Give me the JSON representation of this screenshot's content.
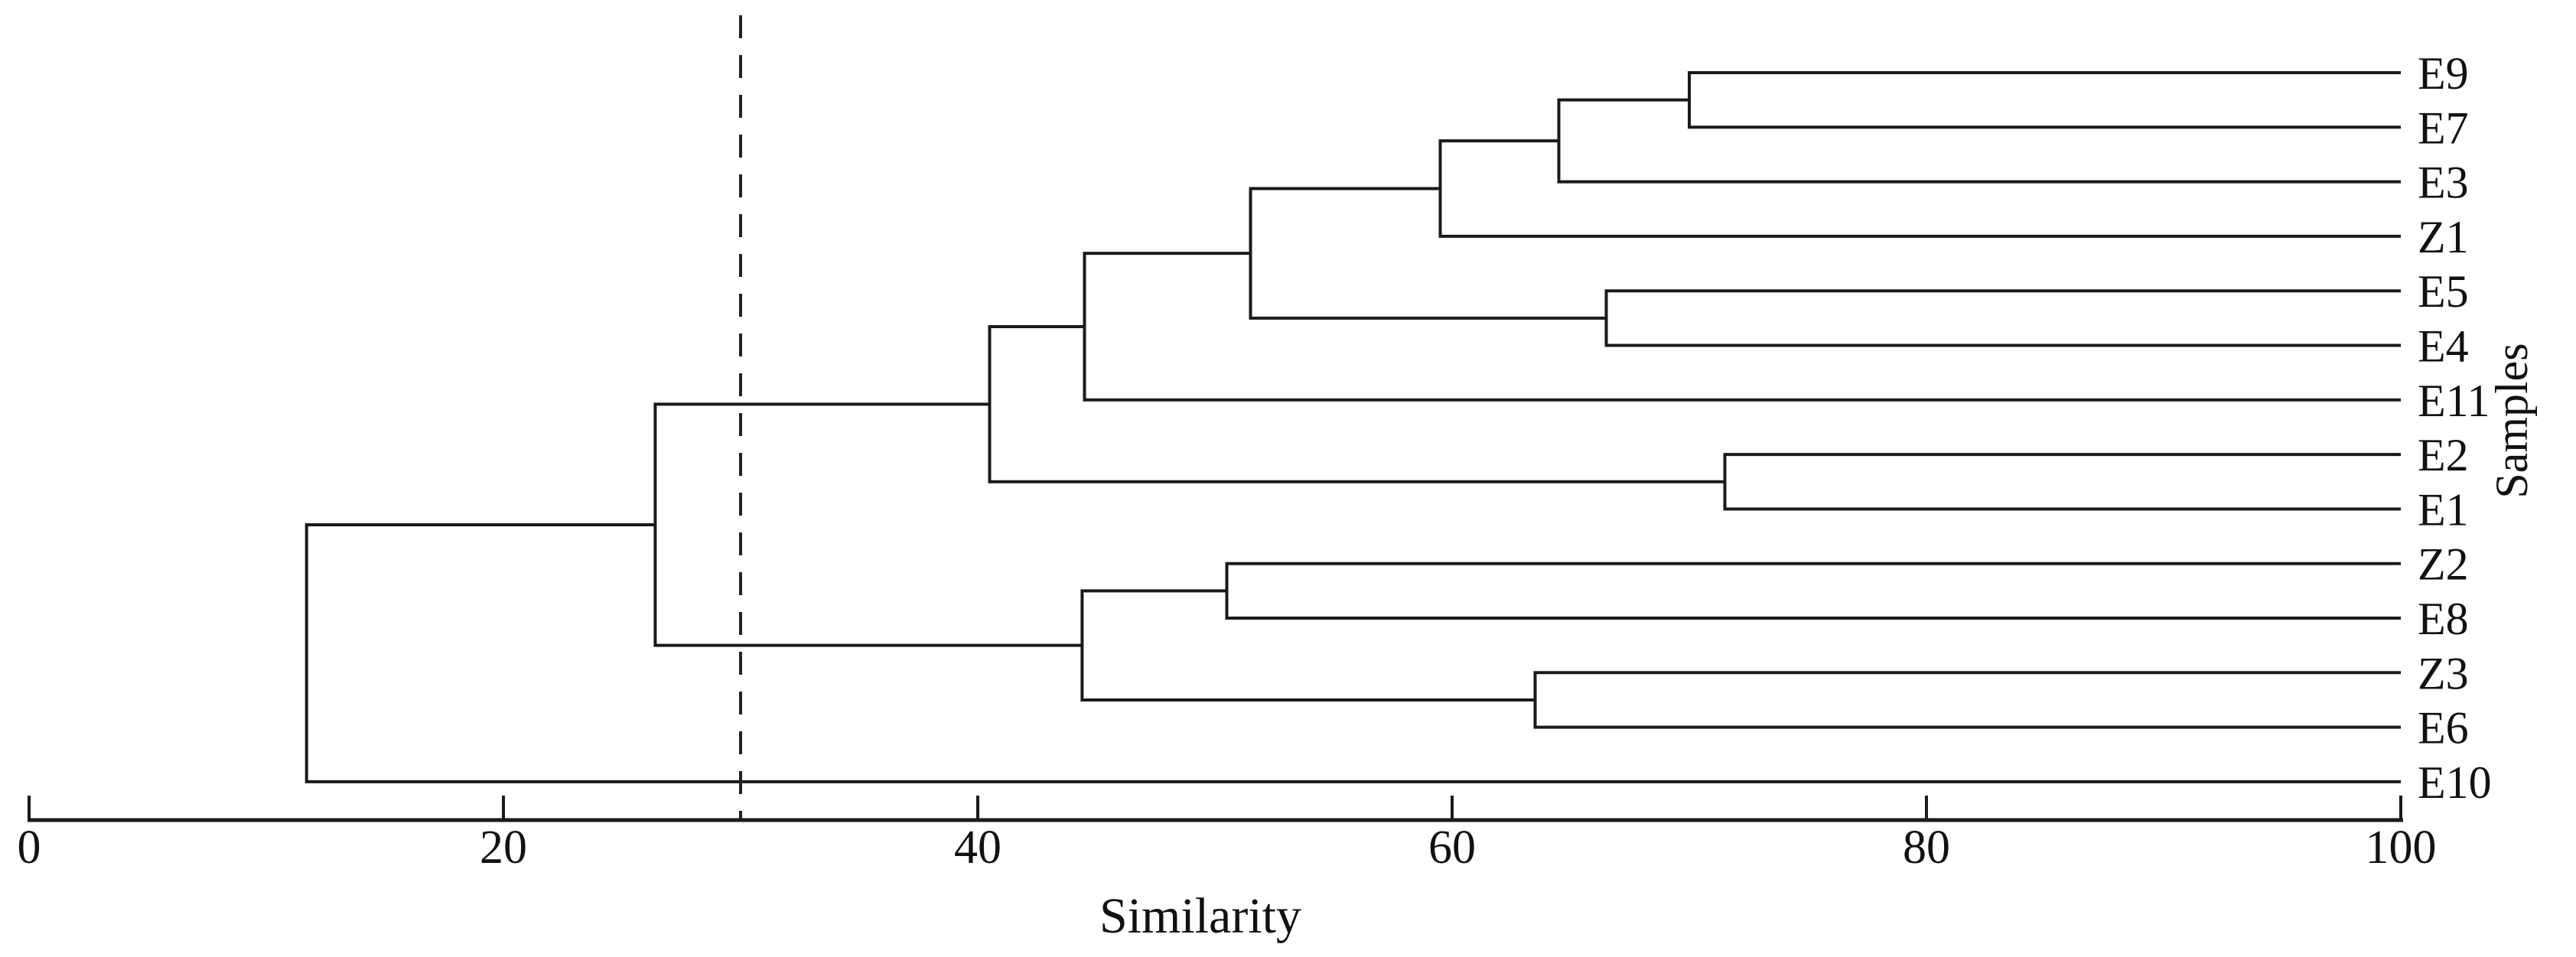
{
  "figure": {
    "xlabel": "Similarity",
    "ylabel": "Samples"
  },
  "chart_data": {
    "type": "dendrogram",
    "orientation": "horizontal, leaves on right, root on left",
    "title": "",
    "xlabel": "Similarity",
    "ylabel": "Samples",
    "x_axis": {
      "min": 0,
      "max": 100,
      "ticks": [
        0,
        20,
        40,
        60,
        80,
        100
      ],
      "grid": false
    },
    "threshold_line": {
      "x": 30,
      "style": "dashed",
      "color": "#222222"
    },
    "line_color": "#1a1a1a",
    "leaves_top_to_bottom": [
      "E9",
      "E7",
      "E3",
      "Z1",
      "E5",
      "E4",
      "E11",
      "E2",
      "E1",
      "Z2",
      "E8",
      "Z3",
      "E6",
      "E10"
    ],
    "merges": [
      {
        "id": "m1",
        "members": [
          "E9",
          "E7"
        ],
        "similarity": 70.0
      },
      {
        "id": "m2",
        "members": [
          "m1",
          "E3"
        ],
        "similarity": 64.5
      },
      {
        "id": "m3",
        "members": [
          "m2",
          "Z1"
        ],
        "similarity": 59.5
      },
      {
        "id": "m4",
        "members": [
          "E5",
          "E4"
        ],
        "similarity": 66.5
      },
      {
        "id": "m5",
        "members": [
          "m3",
          "m4"
        ],
        "similarity": 51.5
      },
      {
        "id": "m6",
        "members": [
          "m5",
          "E11"
        ],
        "similarity": 44.5
      },
      {
        "id": "m7",
        "members": [
          "E2",
          "E1"
        ],
        "similarity": 71.5
      },
      {
        "id": "m8",
        "members": [
          "m6",
          "m7"
        ],
        "similarity": 40.5
      },
      {
        "id": "m9",
        "members": [
          "Z2",
          "E8"
        ],
        "similarity": 50.5
      },
      {
        "id": "m10",
        "members": [
          "Z3",
          "E6"
        ],
        "similarity": 63.5
      },
      {
        "id": "m11",
        "members": [
          "m9",
          "m10"
        ],
        "similarity": 44.4
      },
      {
        "id": "m12",
        "members": [
          "m8",
          "m11"
        ],
        "similarity": 26.4
      },
      {
        "id": "m13",
        "members": [
          "m12",
          "E10"
        ],
        "similarity": 11.7
      }
    ],
    "tree": {
      "similarity": 11.7,
      "children": [
        {
          "similarity": 26.4,
          "children": [
            {
              "similarity": 40.5,
              "children": [
                {
                  "similarity": 44.5,
                  "children": [
                    {
                      "similarity": 51.5,
                      "children": [
                        {
                          "similarity": 59.5,
                          "children": [
                            {
                              "similarity": 64.5,
                              "children": [
                                {
                                  "similarity": 70.0,
                                  "children": [
                                    {
                                      "leaf": "E9"
                                    },
                                    {
                                      "leaf": "E7"
                                    }
                                  ]
                                },
                                {
                                  "leaf": "E3"
                                }
                              ]
                            },
                            {
                              "leaf": "Z1"
                            }
                          ]
                        },
                        {
                          "similarity": 66.5,
                          "children": [
                            {
                              "leaf": "E5"
                            },
                            {
                              "leaf": "E4"
                            }
                          ]
                        }
                      ]
                    },
                    {
                      "leaf": "E11"
                    }
                  ]
                },
                {
                  "similarity": 71.5,
                  "children": [
                    {
                      "leaf": "E2"
                    },
                    {
                      "leaf": "E1"
                    }
                  ]
                }
              ]
            },
            {
              "similarity": 44.4,
              "children": [
                {
                  "similarity": 50.5,
                  "children": [
                    {
                      "leaf": "Z2"
                    },
                    {
                      "leaf": "E8"
                    }
                  ]
                },
                {
                  "similarity": 63.5,
                  "children": [
                    {
                      "leaf": "Z3"
                    },
                    {
                      "leaf": "E6"
                    }
                  ]
                }
              ]
            }
          ]
        },
        {
          "leaf": "E10"
        }
      ]
    }
  }
}
